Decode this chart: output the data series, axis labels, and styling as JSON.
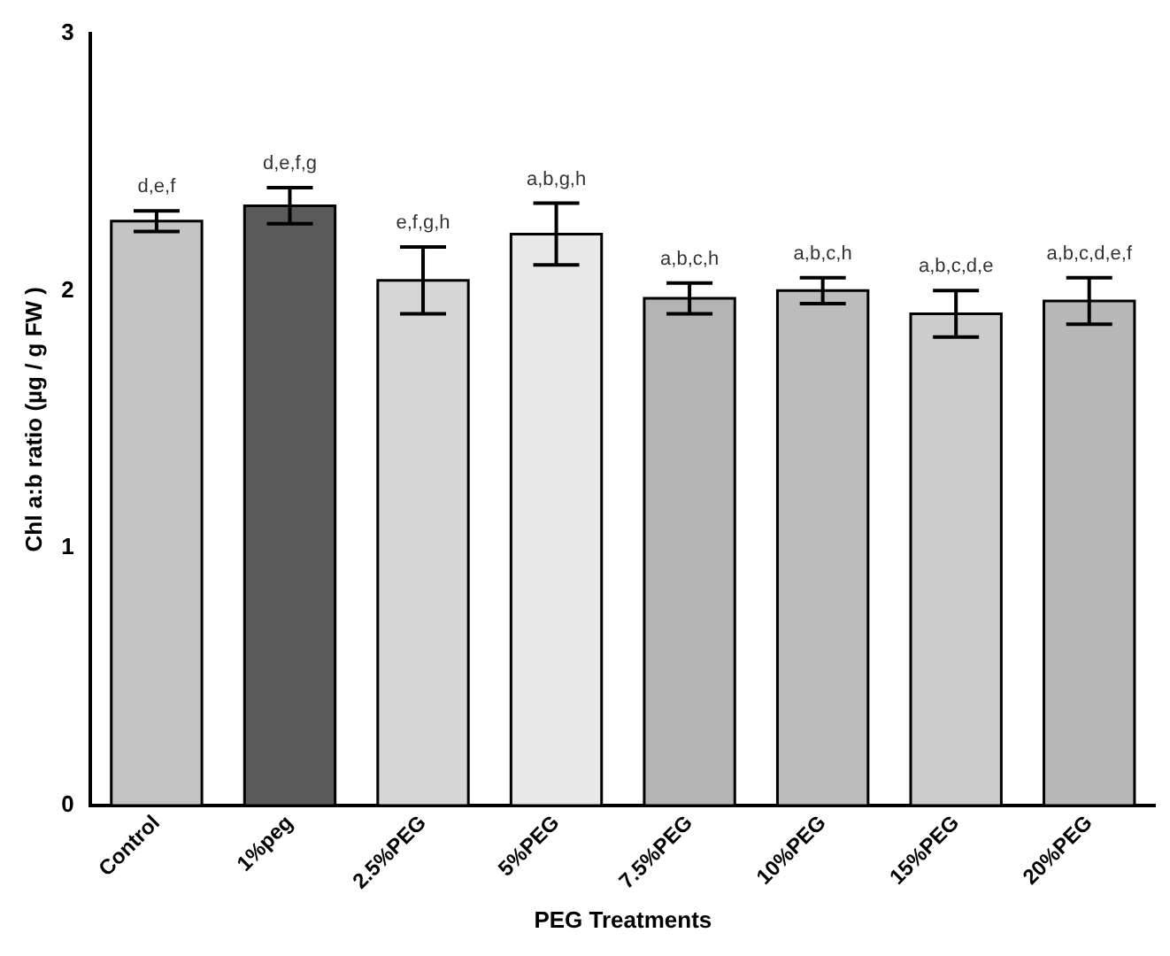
{
  "chart_data": {
    "type": "bar",
    "xlabel": "PEG Treatments",
    "ylabel": "Chl a:b ratio (µg / g FW )",
    "categories": [
      "Control",
      "1%peg",
      "2.5%PEG",
      "5%PEG",
      "7.5%PEG",
      "10%PEG",
      "15%PEG",
      "20%PEG"
    ],
    "values": [
      2.27,
      2.33,
      2.04,
      2.22,
      1.97,
      2.0,
      1.91,
      1.96
    ],
    "errors": [
      0.04,
      0.07,
      0.13,
      0.12,
      0.06,
      0.05,
      0.09,
      0.09
    ],
    "value_labels": [
      "d,e,f",
      "d,e,f,g",
      "e,f,g,h",
      "a,b,g,h",
      "a,b,c,h",
      "a,b,c,h",
      "a,b,c,d,e",
      "a,b,c,d,e,f"
    ],
    "colors": [
      "#c4c4c4",
      "#5a5a5a",
      "#d6d6d6",
      "#e8e8e8",
      "#b4b4b4",
      "#bcbcbc",
      "#cccccc",
      "#b8b8b8"
    ],
    "ylim": [
      0,
      3
    ],
    "yticks": [
      0,
      1,
      2,
      3
    ],
    "grid": false,
    "legend": false
  }
}
